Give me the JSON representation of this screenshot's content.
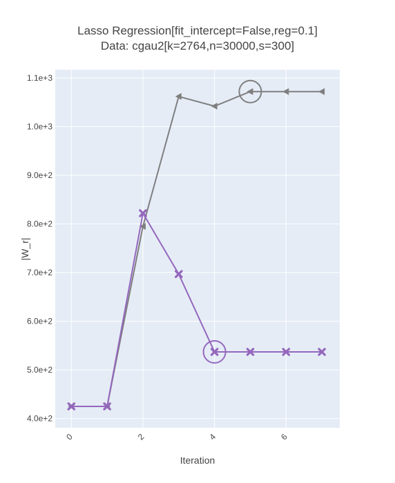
{
  "chart_data": {
    "type": "line",
    "title_line1": "Lasso Regression[fit_intercept=False,reg=0.1]",
    "title_line2": "Data: cgau2[k=2764,n=30000,s=300]",
    "xlabel": "Iteration",
    "ylabel": "|W_r|",
    "x": [
      0,
      1,
      2,
      3,
      4,
      5,
      6,
      7
    ],
    "xlim": [
      -0.45,
      7.5
    ],
    "ylim": [
      381,
      1117
    ],
    "xticks": [
      0,
      2,
      4,
      6
    ],
    "xtick_labels": [
      "0",
      "2",
      "4",
      "6"
    ],
    "yticks": [
      400,
      500,
      600,
      700,
      800,
      900,
      1000,
      1100
    ],
    "ytick_labels": [
      "4.0e+2",
      "5.0e+2",
      "6.0e+2",
      "7.0e+2",
      "8.0e+2",
      "9.0e+2",
      "1.0e+3",
      "1.1e+3"
    ],
    "grid": true,
    "series": [
      {
        "values": [
          425,
          425,
          795,
          1062,
          1042,
          1072,
          1072,
          1072
        ],
        "color": "#7f7f7f",
        "marker": "triangle-left",
        "highlight_index": 5
      },
      {
        "values": [
          425,
          425,
          822,
          697,
          537,
          537,
          537,
          537
        ],
        "color": "#9467bd",
        "marker": "x",
        "highlight_index": 4
      }
    ],
    "plot_background": "#e5ecf6",
    "grid_color": "#ffffff"
  }
}
